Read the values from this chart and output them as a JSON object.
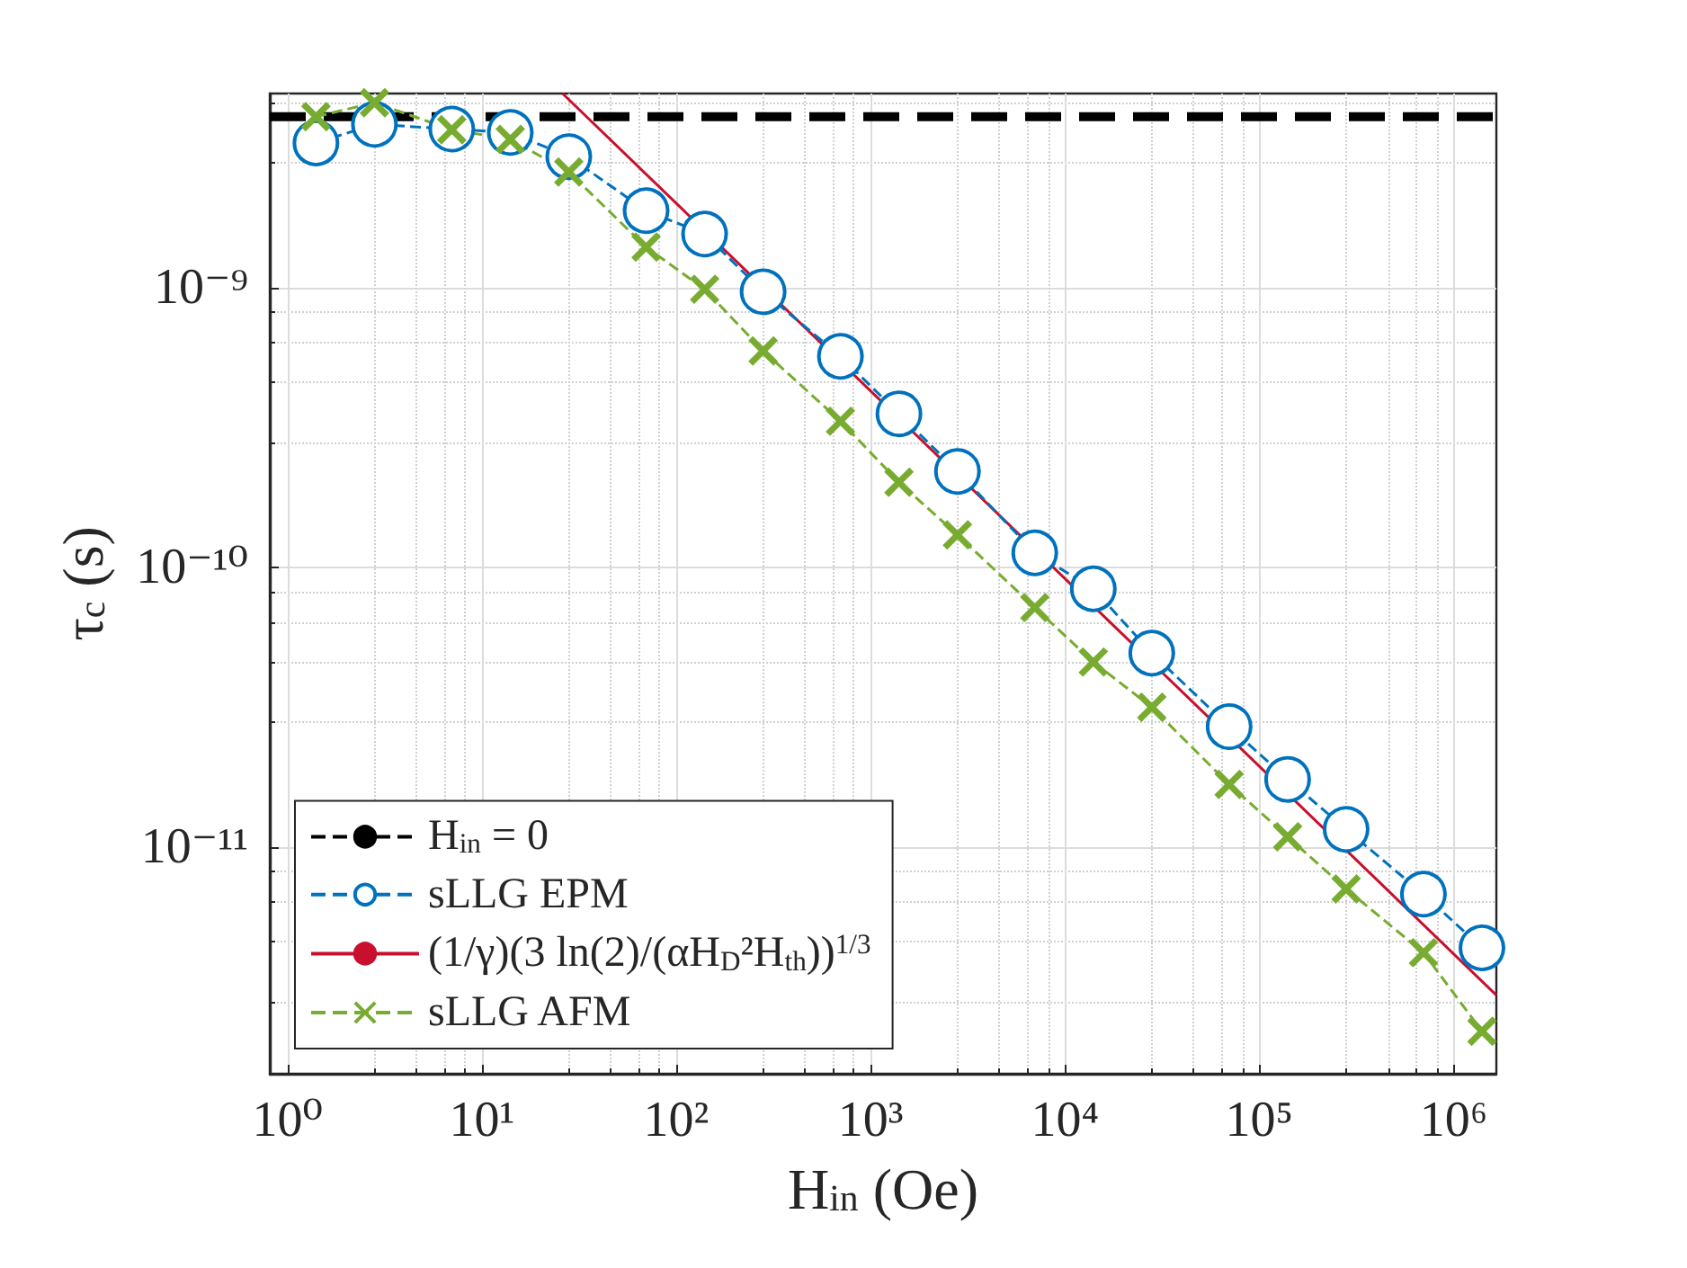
{
  "chart_data": {
    "type": "line",
    "xlabel": "H$_{in}$ (Oe)",
    "ylabel": "τ$_{c}$ (s)",
    "log": "xy",
    "grid": true,
    "legend": "bottom left",
    "xlim": [
      0.81,
      1660000
    ],
    "ylim": [
      1.55e-12,
      4.96e-09
    ],
    "xticks": [
      {
        "value": 1,
        "label": "10⁰"
      },
      {
        "value": 10,
        "label": "10¹"
      },
      {
        "value": 100,
        "label": "10²"
      },
      {
        "value": 1000,
        "label": "10³"
      },
      {
        "value": 10000,
        "label": "10⁴"
      },
      {
        "value": 100000,
        "label": "10⁵"
      },
      {
        "value": 1000000,
        "label": "10⁶"
      }
    ],
    "yticks": [
      {
        "value": 1e-11,
        "label": "10⁻¹¹"
      },
      {
        "value": 1e-10,
        "label": "10⁻¹⁰"
      },
      {
        "value": 1e-09,
        "label": "10⁻⁹"
      }
    ],
    "series": [
      {
        "name": "H$_{in}$ = 0",
        "color": "#000000",
        "line_style": "dashed",
        "marker": "none",
        "x": [
          0.81,
          1660000
        ],
        "values": [
          4.1e-09,
          4.1e-09
        ]
      },
      {
        "name": "sLLG EPM",
        "color": "#0072bd",
        "line_style": "dashed",
        "marker": "circle",
        "x": [
          1.4,
          2.8,
          7,
          14,
          28,
          70,
          140,
          280,
          700,
          1400,
          2800,
          7000,
          14000,
          28000,
          70000,
          140000,
          280000,
          700000,
          1400000
        ],
        "values": [
          3.3e-09,
          3.85e-09,
          3.7e-09,
          3.6e-09,
          2.95e-09,
          1.89e-09,
          1.56e-09,
          9.7e-10,
          5.7e-10,
          3.55e-10,
          2.21e-10,
          1.13e-10,
          8.4e-11,
          4.95e-11,
          2.7e-11,
          1.75e-11,
          1.16e-11,
          6.8e-12,
          4.37e-12
        ]
      },
      {
        "name": "(1/γ)(3 ln(2)/(αH$_{D}$²H$_{th}$))$^{1/3}$",
        "color": "#c8102e",
        "line_style": "solid",
        "marker": "none",
        "x": [
          26,
          1660000
        ],
        "values": [
          4.96e-09,
          2.96e-12
        ]
      },
      {
        "name": "sLLG AFM",
        "color": "#77ac30",
        "line_style": "dashed",
        "marker": "cross",
        "x": [
          1.4,
          2.8,
          7,
          14,
          28,
          70,
          140,
          280,
          700,
          1400,
          2800,
          7000,
          14000,
          28000,
          70000,
          140000,
          280000,
          700000,
          1400000
        ],
        "values": [
          4.1e-09,
          4.6e-09,
          3.68e-09,
          3.4e-09,
          2.6e-09,
          1.4e-09,
          9.9e-10,
          5.96e-10,
          3.34e-10,
          2.02e-10,
          1.31e-10,
          7.2e-11,
          4.6e-11,
          3.17e-11,
          1.68e-11,
          1.09e-11,
          7.1e-12,
          4.2e-12,
          2.2e-12
        ]
      }
    ]
  }
}
